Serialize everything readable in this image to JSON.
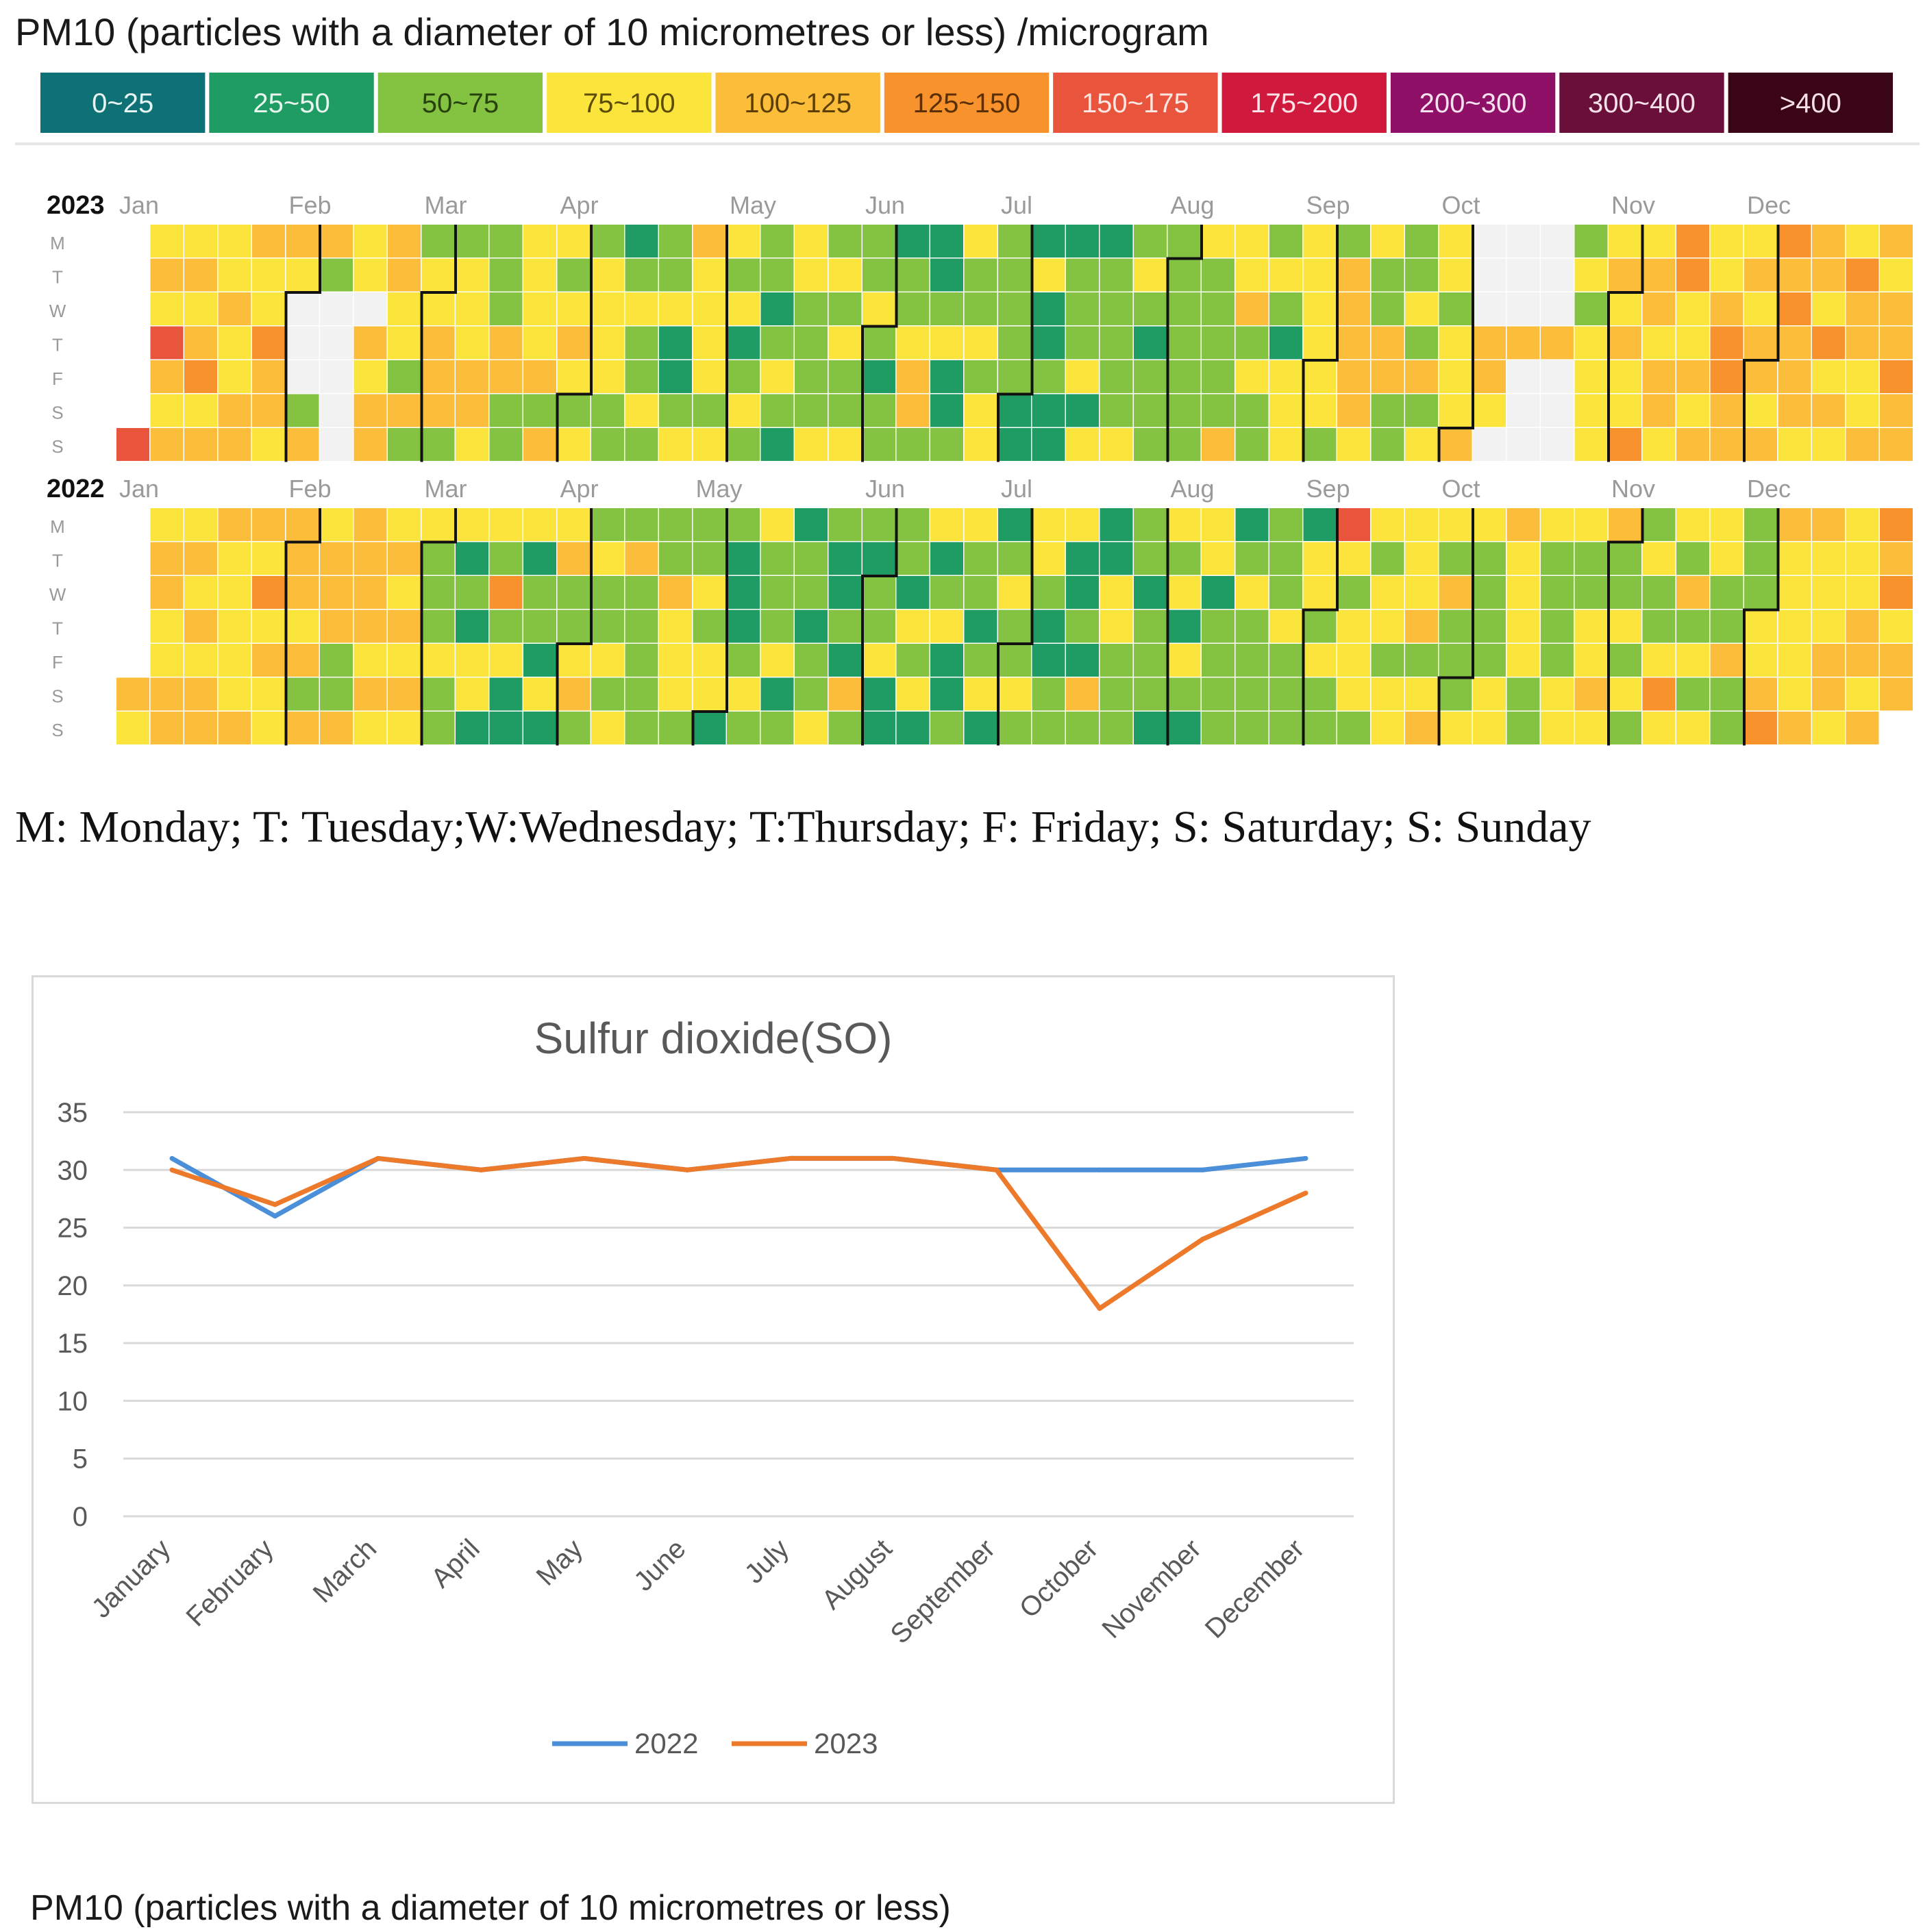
{
  "pm10_title": "PM10 (particles with a diameter of 10 micrometres or less) /microgram",
  "legend": [
    {
      "label": "0~25",
      "color": "#0e7175",
      "text_color": "#e8f3f3"
    },
    {
      "label": "25~50",
      "color": "#1f9b64",
      "text_color": "#e8f5ee"
    },
    {
      "label": "50~75",
      "color": "#84c241",
      "text_color": "#27410f"
    },
    {
      "label": "75~100",
      "color": "#fbe53d",
      "text_color": "#5b4c06"
    },
    {
      "label": "100~125",
      "color": "#fbbd3a",
      "text_color": "#5b3f06"
    },
    {
      "label": "125~150",
      "color": "#f7922d",
      "text_color": "#5a2f06"
    },
    {
      "label": "150~175",
      "color": "#e8543c",
      "text_color": "#fde6e1"
    },
    {
      "label": "175~200",
      "color": "#cf1a3d",
      "text_color": "#fde3e8"
    },
    {
      "label": "200~300",
      "color": "#8e1067",
      "text_color": "#f6e2ef"
    },
    {
      "label": "300~400",
      "color": "#6a0f3a",
      "text_color": "#f4e1ea"
    },
    {
      "label": ">400",
      "color": "#3b0518",
      "text_color": "#f4e0e6"
    }
  ],
  "heatmap": {
    "weekday_labels": [
      "M",
      "T",
      "W",
      "T",
      "F",
      "S",
      "S"
    ],
    "month_labels": [
      "Jan",
      "Feb",
      "Mar",
      "Apr",
      "May",
      "Jun",
      "Jul",
      "Aug",
      "Sep",
      "Oct",
      "Nov",
      "Dec"
    ],
    "years": [
      {
        "year": "2023",
        "jan1_weekday": 6,
        "days": 365
      },
      {
        "year": "2022",
        "jan1_weekday": 5,
        "days": 365
      }
    ],
    "palette": {
      "missing": "#f2f2f2",
      "0-25": "#0e7175",
      "25-50": "#1f9b64",
      "50-75": "#84c241",
      "75-100": "#fbe53d",
      "100-125": "#fbbd3a",
      "125-150": "#f7922d",
      "150-175": "#e8543c",
      "175-200": "#cf1a3d"
    },
    "month_boundary_color": "#111111"
  },
  "day_legend": "M: Monday; T: Tuesday;W:Wednesday; T:Thursday; F: Friday; S: Saturday; S: Sunday",
  "chart_data": {
    "type": "line",
    "title": "Sulfur dioxide(SO)",
    "categories": [
      "January",
      "February",
      "March",
      "April",
      "May",
      "June",
      "July",
      "August",
      "September",
      "October",
      "November",
      "December"
    ],
    "series": [
      {
        "name": "2022",
        "color": "#4a8fd8",
        "values": [
          31,
          26,
          31,
          30,
          31,
          30,
          31,
          31,
          30,
          30,
          30,
          31
        ]
      },
      {
        "name": "2023",
        "color": "#ec7a2a",
        "values": [
          30,
          27,
          31,
          30,
          31,
          30,
          31,
          31,
          30,
          18,
          24,
          28
        ]
      }
    ],
    "ylim": [
      0,
      35
    ],
    "yticks": [
      0,
      5,
      10,
      15,
      20,
      25,
      30,
      35
    ],
    "gridlines": true,
    "legend": "bottom",
    "xlabel": "",
    "ylabel": ""
  },
  "bottom_caption": "PM10 (particles with a diameter of 10 micrometres or less)"
}
